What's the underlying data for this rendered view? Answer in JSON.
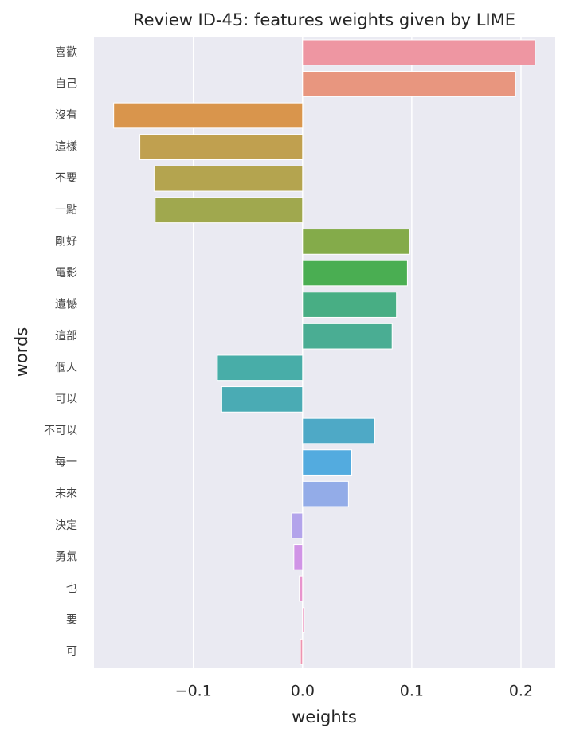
{
  "chart_data": {
    "type": "barh",
    "title": "Review ID-45: features weights given by LIME",
    "x_label": "weights",
    "y_label": "words",
    "categories": [
      "喜歡",
      "自己",
      "沒有",
      "這樣",
      "不要",
      "一點",
      "剛好",
      "電影",
      "遺憾",
      "這部",
      "個人",
      "可以",
      "不可以",
      "每一",
      "未來",
      "決定",
      "勇氣",
      "也",
      "要",
      "可"
    ],
    "values": [
      0.213,
      0.195,
      -0.173,
      -0.149,
      -0.136,
      -0.135,
      0.098,
      0.096,
      0.086,
      0.082,
      -0.078,
      -0.074,
      0.066,
      0.045,
      0.042,
      -0.01,
      -0.008,
      -0.003,
      0.0015,
      -0.002
    ],
    "colors": [
      "#ee96a2",
      "#e8967f",
      "#d9954c",
      "#c0a04f",
      "#b4a44f",
      "#a0a84e",
      "#84ab4a",
      "#4aae52",
      "#48ae84",
      "#4aad93",
      "#48ada8",
      "#4aabb4",
      "#4ea9c6",
      "#53abdf",
      "#93ace8",
      "#b3a4eb",
      "#d094e6",
      "#e894cd",
      "#ed93bc",
      "#ee94b0"
    ],
    "xlim": [
      -0.191,
      0.2314
    ],
    "xticks": [
      {
        "value": -0.1,
        "label": "−0.1"
      },
      {
        "value": 0,
        "label": "0.0"
      },
      0.1,
      0.2
    ],
    "grid": true
  }
}
